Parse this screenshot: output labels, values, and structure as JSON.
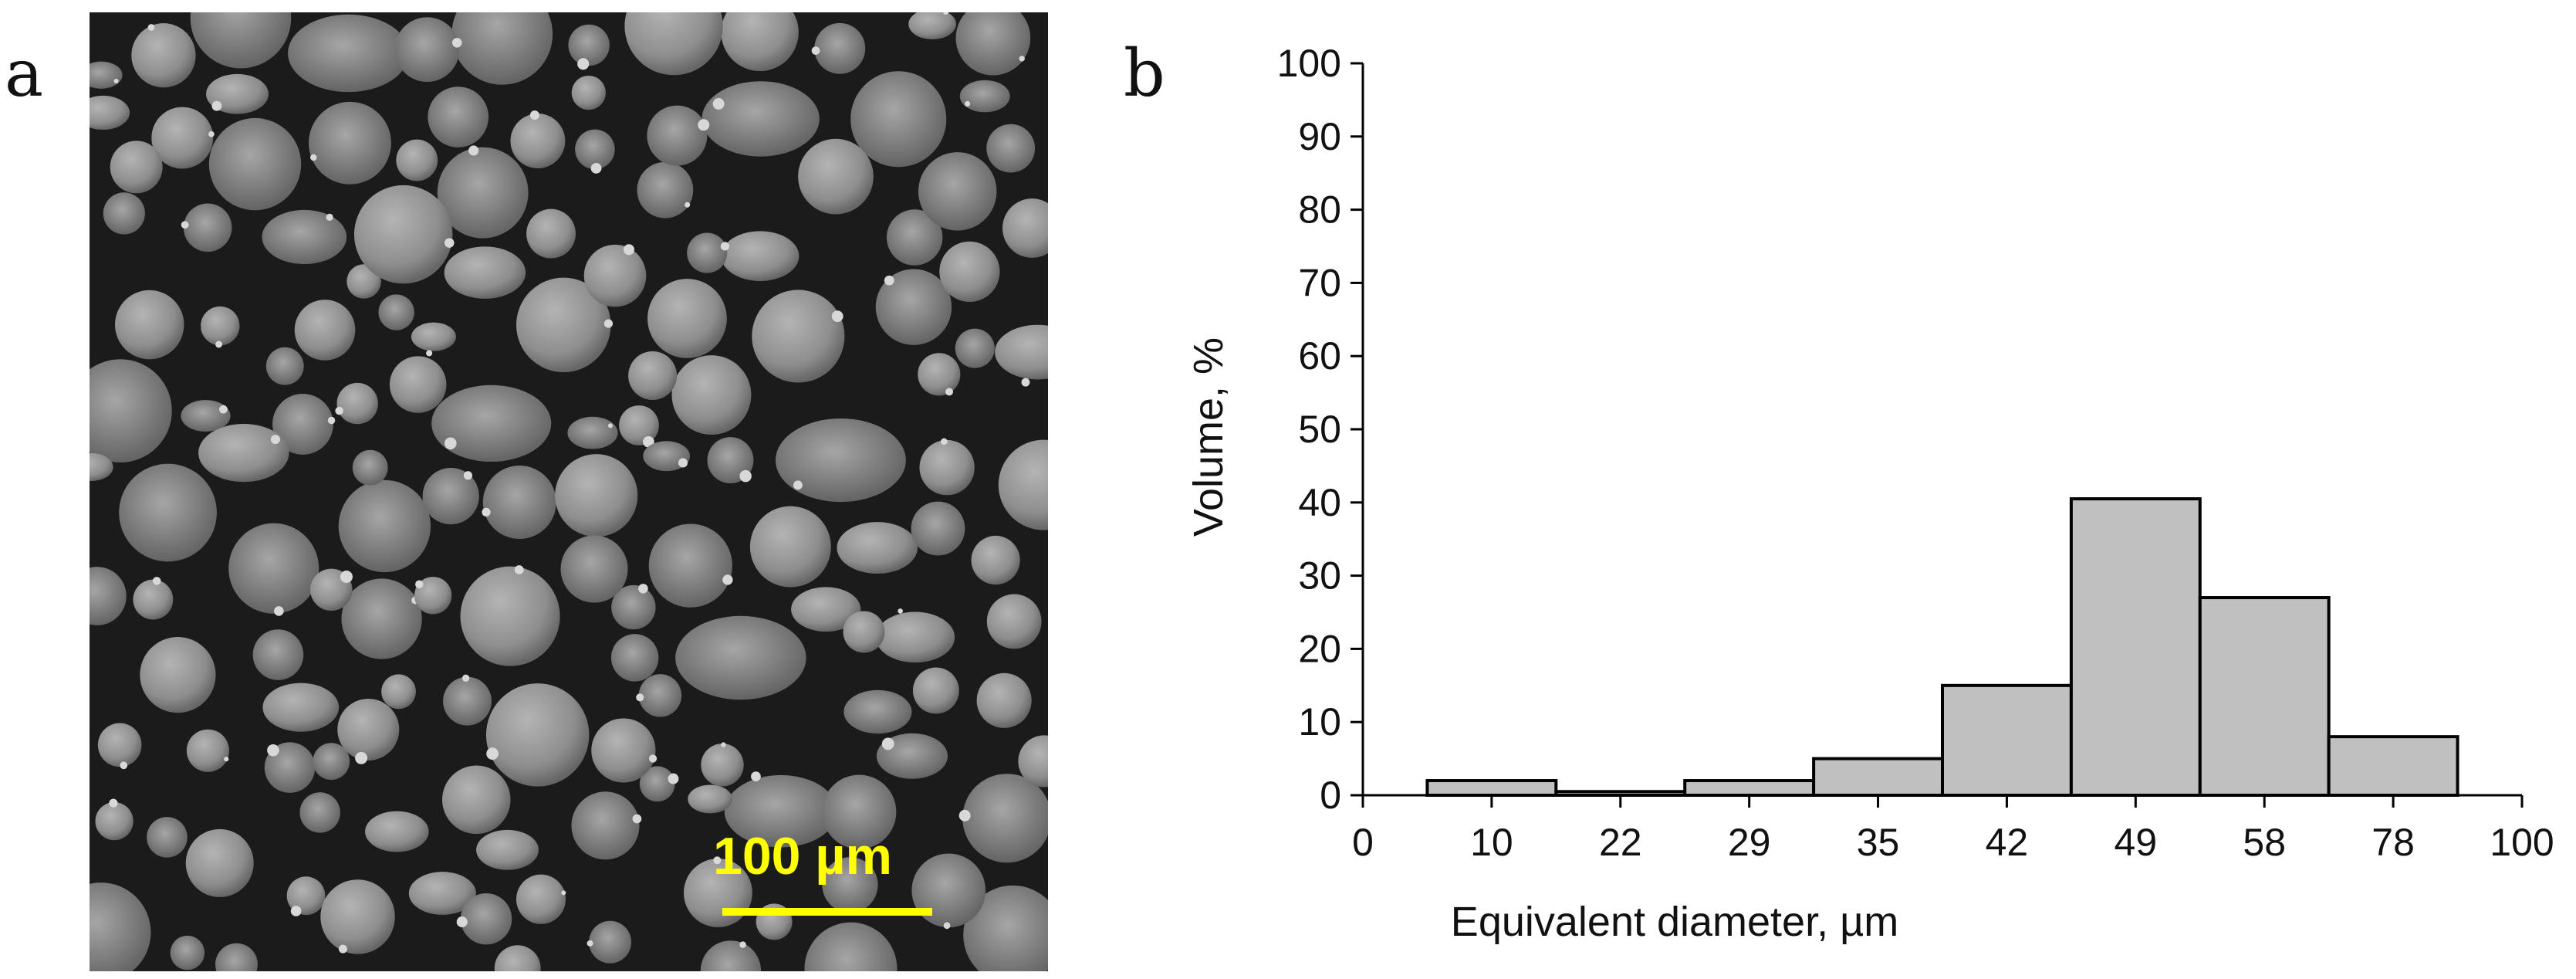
{
  "panels": {
    "a": {
      "letter": "a",
      "scale_bar_label": "100 µm",
      "scale_bar_color": "#ffff00"
    },
    "b": {
      "letter": "b"
    }
  },
  "chart_data": {
    "type": "bar",
    "categories": [
      "10",
      "22",
      "29",
      "35",
      "42",
      "49",
      "58",
      "78"
    ],
    "values": [
      2,
      0.5,
      2,
      5,
      15,
      40.5,
      27,
      8
    ],
    "xlabel": "Equivalent diameter, µm",
    "ylabel": "Volume, %",
    "x_ticks": [
      "0",
      "10",
      "22",
      "29",
      "35",
      "42",
      "49",
      "58",
      "78",
      "100"
    ],
    "ylim": [
      0,
      100
    ],
    "y_ticks": [
      0,
      10,
      20,
      30,
      40,
      50,
      60,
      70,
      80,
      90,
      100
    ],
    "grid": false,
    "bar_fill": "#c0c0c0",
    "bar_edge": "#000000"
  }
}
